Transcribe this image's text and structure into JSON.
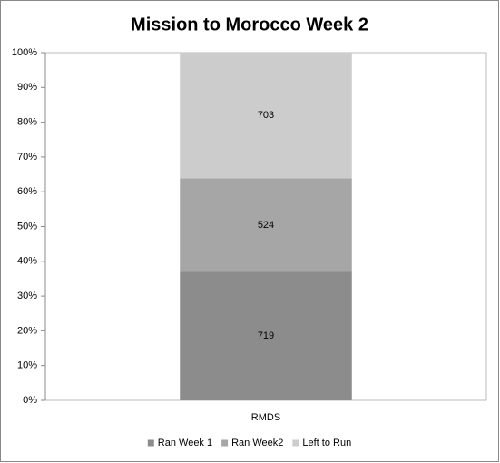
{
  "chart_data": {
    "type": "bar",
    "stacking": "percent",
    "title": "Mission to Morocco Week 2",
    "categories": [
      "RMDS"
    ],
    "series": [
      {
        "name": "Ran Week 1",
        "color": "#8c8c8c",
        "values": [
          719
        ]
      },
      {
        "name": "Ran Week2",
        "color": "#a6a6a6",
        "values": [
          524
        ]
      },
      {
        "name": "Left to Run",
        "color": "#cccccc",
        "values": [
          703
        ]
      }
    ],
    "ylim": [
      0,
      100
    ],
    "yticks": [
      {
        "value": 0,
        "label": "0%"
      },
      {
        "value": 10,
        "label": "10%"
      },
      {
        "value": 20,
        "label": "20%"
      },
      {
        "value": 30,
        "label": "30%"
      },
      {
        "value": 40,
        "label": "40%"
      },
      {
        "value": 50,
        "label": "50%"
      },
      {
        "value": 60,
        "label": "60%"
      },
      {
        "value": 70,
        "label": "70%"
      },
      {
        "value": 80,
        "label": "80%"
      },
      {
        "value": 90,
        "label": "90%"
      },
      {
        "value": 100,
        "label": "100%"
      }
    ],
    "legend": "bottom"
  }
}
